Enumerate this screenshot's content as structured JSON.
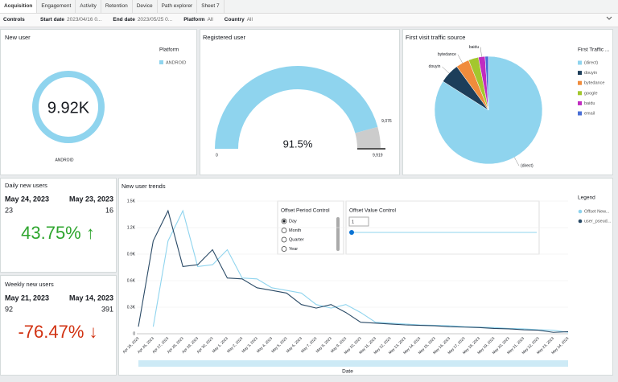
{
  "tabs": [
    "Acquisition",
    "Engagement",
    "Activity",
    "Retention",
    "Device",
    "Path explorer",
    "Sheet 7"
  ],
  "active_tab": 0,
  "controls": {
    "title": "Controls",
    "filters": [
      {
        "label": "Start date",
        "value": "2023/04/16 0..."
      },
      {
        "label": "End date",
        "value": "2023/05/25 0..."
      },
      {
        "label": "Platform",
        "value": "All"
      },
      {
        "label": "Country",
        "value": "All"
      }
    ]
  },
  "new_user": {
    "title": "New user",
    "legend_title": "Platform",
    "chart_data": {
      "type": "donut",
      "categories": [
        "ANDROID"
      ],
      "values": [
        9919
      ],
      "value_labels": [
        "9.92K"
      ],
      "colors": [
        "#8fd4ee"
      ]
    }
  },
  "registered_user": {
    "title": "Registered user",
    "chart_data": {
      "type": "gauge",
      "min": 0,
      "value": 9076,
      "value_label": "9,076",
      "max": 9919,
      "max_label": "9,919",
      "percent_label": "91.5%",
      "color": "#8fd4ee",
      "rest_color": "#cccccc"
    }
  },
  "first_visit": {
    "title": "First visit traffic source",
    "legend_title": "First Traffic ...",
    "chart_data": {
      "type": "pie",
      "categories": [
        "(direct)",
        "douyin",
        "bytedance",
        "google",
        "baidu",
        "email"
      ],
      "values": [
        84,
        6,
        4,
        3,
        2,
        1
      ],
      "colors": [
        "#8fd4ee",
        "#1d3e5a",
        "#f08c3c",
        "#a3c72e",
        "#c02bc0",
        "#4a6fd6"
      ],
      "labeled": [
        0,
        1,
        2,
        4
      ]
    }
  },
  "daily_new_users": {
    "title": "Daily new users",
    "dates": [
      "May 24, 2023",
      "May 23, 2023"
    ],
    "values": [
      23,
      16
    ],
    "change": "43.75% ↑",
    "change_color": "#2ea52e"
  },
  "weekly_new_users": {
    "title": "Weekly new users",
    "dates": [
      "May 21, 2023",
      "May 14, 2023"
    ],
    "values": [
      92,
      391
    ],
    "change": "-76.47% ↓",
    "change_color": "#d13212"
  },
  "new_user_trends": {
    "title": "New user trends",
    "legend_title": "Legend",
    "offset_period": {
      "title": "Offset Period Control",
      "options": [
        "Day",
        "Month",
        "Quarter",
        "Year"
      ],
      "selected": 0
    },
    "offset_value": {
      "title": "Offset Value Control",
      "value": "1"
    },
    "chart_data": {
      "type": "line",
      "x_label": "Date",
      "categories": [
        "Apr 25, 2023",
        "Apr 26, 2023",
        "Apr 27, 2023",
        "Apr 28, 2023",
        "Apr 29, 2023",
        "Apr 30, 2023",
        "May 1, 2023",
        "May 2, 2023",
        "May 3, 2023",
        "May 4, 2023",
        "May 5, 2023",
        "May 6, 2023",
        "May 7, 2023",
        "May 8, 2023",
        "May 9, 2023",
        "May 10, 2023",
        "May 11, 2023",
        "May 12, 2023",
        "May 13, 2023",
        "May 14, 2023",
        "May 15, 2023",
        "May 16, 2023",
        "May 17, 2023",
        "May 18, 2023",
        "May 19, 2023",
        "May 20, 2023",
        "May 21, 2023",
        "May 22, 2023",
        "May 23, 2023",
        "May 24, 2023"
      ],
      "series": [
        {
          "name": "Offset New...",
          "color": "#8fd4ee",
          "values": [
            null,
            80,
            1050,
            1390,
            760,
            780,
            950,
            630,
            620,
            520,
            490,
            460,
            330,
            290,
            330,
            240,
            130,
            120,
            110,
            100,
            95,
            90,
            80,
            75,
            70,
            60,
            55,
            45,
            40,
            16
          ]
        },
        {
          "name": "user_pseud...",
          "color": "#2a4a66",
          "values": [
            80,
            1050,
            1390,
            760,
            780,
            950,
            630,
            620,
            520,
            490,
            460,
            330,
            290,
            330,
            240,
            130,
            120,
            110,
            100,
            95,
            90,
            80,
            75,
            70,
            60,
            55,
            45,
            40,
            16,
            23
          ]
        }
      ],
      "ylim": [
        0,
        1500
      ],
      "yticks": [
        0,
        {
          "value": 300,
          "label": "0.3K"
        },
        {
          "value": 600,
          "label": "0.6K"
        },
        {
          "value": 900,
          "label": "0.9K"
        },
        {
          "value": 1200,
          "label": "1.2K"
        },
        {
          "value": 1500,
          "label": "1.5K"
        }
      ],
      "grid": true
    }
  }
}
